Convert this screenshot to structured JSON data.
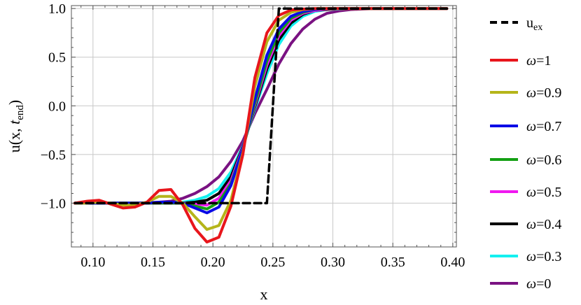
{
  "chart_data": {
    "type": "line",
    "xlabel": "x",
    "ylabel_parts": {
      "base": "u(x, ",
      "t": "t",
      "sub": "end",
      "close": ")"
    },
    "xlim": [
      0.082,
      0.403
    ],
    "ylim": [
      -1.45,
      1.03
    ],
    "x_ticks": [
      0.1,
      0.15,
      0.2,
      0.25,
      0.3,
      0.35,
      0.4
    ],
    "x_tick_labels": [
      "0.10",
      "0.15",
      "0.20",
      "0.25",
      "0.30",
      "0.35",
      "0.40"
    ],
    "y_ticks": [
      -1.0,
      -0.5,
      0.0,
      0.5,
      1.0
    ],
    "y_tick_labels": [
      "−1.0",
      "−0.5",
      "0.0",
      "0.5",
      "1.0"
    ],
    "grid": true,
    "legend_position": "right",
    "series": [
      {
        "key": "uex",
        "label_base": "u",
        "label_sub": "ex",
        "color": "#000000",
        "dashed": true,
        "x": [
          0.085,
          0.095,
          0.105,
          0.115,
          0.125,
          0.135,
          0.145,
          0.155,
          0.165,
          0.175,
          0.185,
          0.195,
          0.205,
          0.215,
          0.225,
          0.235,
          0.245,
          0.255,
          0.265,
          0.275,
          0.285,
          0.295,
          0.305,
          0.315,
          0.325,
          0.335,
          0.345,
          0.355,
          0.365,
          0.375,
          0.385,
          0.395
        ],
        "y": [
          -1,
          -1,
          -1,
          -1,
          -1,
          -1,
          -1,
          -1,
          -1,
          -1,
          -1,
          -1,
          -1,
          -1,
          -1,
          -1,
          -1,
          1,
          1,
          1,
          1,
          1,
          1,
          1,
          1,
          1,
          1,
          1,
          1,
          1,
          1,
          1
        ]
      },
      {
        "key": "w1",
        "label_omega": "ω",
        "label_rest": "=1",
        "color": "#e8161c",
        "dashed": false,
        "x": [
          0.085,
          0.095,
          0.105,
          0.115,
          0.125,
          0.135,
          0.145,
          0.155,
          0.165,
          0.175,
          0.185,
          0.195,
          0.205,
          0.215,
          0.225,
          0.235,
          0.245,
          0.255,
          0.265,
          0.275,
          0.285,
          0.295,
          0.305,
          0.315,
          0.325,
          0.335,
          0.345,
          0.355,
          0.365,
          0.375,
          0.385,
          0.395
        ],
        "y": [
          -1.0,
          -0.98,
          -0.97,
          -1.01,
          -1.05,
          -1.04,
          -0.99,
          -0.87,
          -0.86,
          -1.02,
          -1.26,
          -1.4,
          -1.35,
          -1.03,
          -0.5,
          0.29,
          0.75,
          0.93,
          0.985,
          0.995,
          1.0,
          1.0,
          1.0,
          1.0,
          1.0,
          1.0,
          1.0,
          1.0,
          1.0,
          1.0,
          1.0,
          1.0
        ]
      },
      {
        "key": "w09",
        "label_omega": "ω",
        "label_rest": "=0.9",
        "color": "#b5b51a",
        "dashed": false,
        "x": [
          0.085,
          0.095,
          0.105,
          0.115,
          0.125,
          0.135,
          0.145,
          0.155,
          0.165,
          0.175,
          0.185,
          0.195,
          0.205,
          0.215,
          0.225,
          0.235,
          0.245,
          0.255,
          0.265,
          0.275,
          0.285,
          0.295,
          0.305,
          0.315,
          0.325,
          0.335,
          0.345,
          0.355,
          0.365,
          0.375,
          0.385,
          0.395
        ],
        "y": [
          -1.0,
          -1.0,
          -0.99,
          -1.0,
          -1.02,
          -1.02,
          -0.99,
          -0.93,
          -0.93,
          -1.0,
          -1.14,
          -1.27,
          -1.23,
          -0.97,
          -0.48,
          0.2,
          0.66,
          0.88,
          0.96,
          0.99,
          1.0,
          1.0,
          1.0,
          1.0,
          1.0,
          1.0,
          1.0,
          1.0,
          1.0,
          1.0,
          1.0,
          1.0
        ]
      },
      {
        "key": "w07",
        "label_omega": "ω",
        "label_rest": "=0.7",
        "color": "#0a0ae6",
        "dashed": false,
        "x": [
          0.085,
          0.095,
          0.105,
          0.115,
          0.125,
          0.135,
          0.145,
          0.155,
          0.165,
          0.175,
          0.185,
          0.195,
          0.205,
          0.215,
          0.225,
          0.235,
          0.245,
          0.255,
          0.265,
          0.275,
          0.285,
          0.295,
          0.305,
          0.315,
          0.325,
          0.335,
          0.345,
          0.355,
          0.365,
          0.375,
          0.385,
          0.395
        ],
        "y": [
          -1.0,
          -1.0,
          -1.0,
          -1.0,
          -1.0,
          -1.0,
          -1.0,
          -0.99,
          -0.99,
          -1.0,
          -1.05,
          -1.1,
          -1.04,
          -0.82,
          -0.44,
          0.07,
          0.52,
          0.79,
          0.92,
          0.97,
          0.99,
          1.0,
          1.0,
          1.0,
          1.0,
          1.0,
          1.0,
          1.0,
          1.0,
          1.0,
          1.0,
          1.0
        ]
      },
      {
        "key": "w06",
        "label_omega": "ω",
        "label_rest": "=0.6",
        "color": "#14a014",
        "dashed": false,
        "x": [
          0.085,
          0.095,
          0.105,
          0.115,
          0.125,
          0.135,
          0.145,
          0.155,
          0.165,
          0.175,
          0.185,
          0.195,
          0.205,
          0.215,
          0.225,
          0.235,
          0.245,
          0.255,
          0.265,
          0.275,
          0.285,
          0.295,
          0.305,
          0.315,
          0.325,
          0.335,
          0.345,
          0.355,
          0.365,
          0.375,
          0.385,
          0.395
        ],
        "y": [
          -1.0,
          -1.0,
          -1.0,
          -1.0,
          -1.0,
          -1.0,
          -1.0,
          -1.0,
          -1.0,
          -1.0,
          -1.03,
          -1.06,
          -0.99,
          -0.8,
          -0.44,
          0.03,
          0.46,
          0.75,
          0.9,
          0.96,
          0.99,
          1.0,
          1.0,
          1.0,
          1.0,
          1.0,
          1.0,
          1.0,
          1.0,
          1.0,
          1.0,
          1.0
        ]
      },
      {
        "key": "w05",
        "label_omega": "ω",
        "label_rest": "=0.5",
        "color": "#f018f0",
        "dashed": false,
        "x": [
          0.085,
          0.095,
          0.105,
          0.115,
          0.125,
          0.135,
          0.145,
          0.155,
          0.165,
          0.175,
          0.185,
          0.195,
          0.205,
          0.215,
          0.225,
          0.235,
          0.245,
          0.255,
          0.265,
          0.275,
          0.285,
          0.295,
          0.305,
          0.315,
          0.325,
          0.335,
          0.345,
          0.355,
          0.365,
          0.375,
          0.385,
          0.395
        ],
        "y": [
          -1.0,
          -1.0,
          -1.0,
          -1.0,
          -1.0,
          -1.0,
          -1.0,
          -1.0,
          -1.0,
          -1.0,
          -1.01,
          -1.02,
          -0.95,
          -0.77,
          -0.43,
          0.01,
          0.42,
          0.72,
          0.88,
          0.95,
          0.98,
          0.995,
          1.0,
          1.0,
          1.0,
          1.0,
          1.0,
          1.0,
          1.0,
          1.0,
          1.0,
          1.0
        ]
      },
      {
        "key": "w04",
        "label_omega": "ω",
        "label_rest": "=0.4",
        "color": "#000000",
        "dashed": false,
        "x": [
          0.085,
          0.095,
          0.105,
          0.115,
          0.125,
          0.135,
          0.145,
          0.155,
          0.165,
          0.175,
          0.185,
          0.195,
          0.205,
          0.215,
          0.225,
          0.235,
          0.245,
          0.255,
          0.265,
          0.275,
          0.285,
          0.295,
          0.305,
          0.315,
          0.325,
          0.335,
          0.345,
          0.355,
          0.365,
          0.375,
          0.385,
          0.395
        ],
        "y": [
          -1.0,
          -1.0,
          -1.0,
          -1.0,
          -1.0,
          -1.0,
          -1.0,
          -1.0,
          -1.0,
          -1.0,
          -0.99,
          -0.97,
          -0.9,
          -0.73,
          -0.42,
          -0.01,
          0.38,
          0.68,
          0.85,
          0.94,
          0.98,
          0.99,
          1.0,
          1.0,
          1.0,
          1.0,
          1.0,
          1.0,
          1.0,
          1.0,
          1.0,
          1.0
        ]
      },
      {
        "key": "w03",
        "label_omega": "ω",
        "label_rest": "=0.3",
        "color": "#14f0f0",
        "dashed": false,
        "x": [
          0.085,
          0.095,
          0.105,
          0.115,
          0.125,
          0.135,
          0.145,
          0.155,
          0.165,
          0.175,
          0.185,
          0.195,
          0.205,
          0.215,
          0.225,
          0.235,
          0.245,
          0.255,
          0.265,
          0.275,
          0.285,
          0.295,
          0.305,
          0.315,
          0.325,
          0.335,
          0.345,
          0.355,
          0.365,
          0.375,
          0.385,
          0.395
        ],
        "y": [
          -1.0,
          -1.0,
          -1.0,
          -1.0,
          -1.0,
          -1.0,
          -1.0,
          -1.0,
          -0.995,
          -0.99,
          -0.97,
          -0.93,
          -0.85,
          -0.68,
          -0.41,
          -0.03,
          0.33,
          0.63,
          0.82,
          0.92,
          0.97,
          0.99,
          0.995,
          1.0,
          1.0,
          1.0,
          1.0,
          1.0,
          1.0,
          1.0,
          1.0,
          1.0
        ]
      },
      {
        "key": "w0",
        "label_omega": "ω",
        "label_rest": "=0",
        "color": "#7a1282",
        "dashed": false,
        "x": [
          0.085,
          0.095,
          0.105,
          0.115,
          0.125,
          0.135,
          0.145,
          0.155,
          0.165,
          0.175,
          0.185,
          0.195,
          0.205,
          0.215,
          0.225,
          0.235,
          0.245,
          0.255,
          0.265,
          0.275,
          0.285,
          0.295,
          0.305,
          0.315,
          0.325,
          0.335,
          0.345,
          0.355,
          0.365,
          0.375,
          0.385,
          0.395
        ],
        "y": [
          -1.0,
          -1.0,
          -1.0,
          -1.0,
          -1.0,
          -1.0,
          -0.995,
          -0.99,
          -0.98,
          -0.95,
          -0.9,
          -0.83,
          -0.73,
          -0.57,
          -0.36,
          -0.08,
          0.17,
          0.43,
          0.64,
          0.79,
          0.89,
          0.95,
          0.975,
          0.99,
          0.995,
          1.0,
          1.0,
          1.0,
          1.0,
          1.0,
          1.0,
          1.0
        ]
      }
    ]
  }
}
